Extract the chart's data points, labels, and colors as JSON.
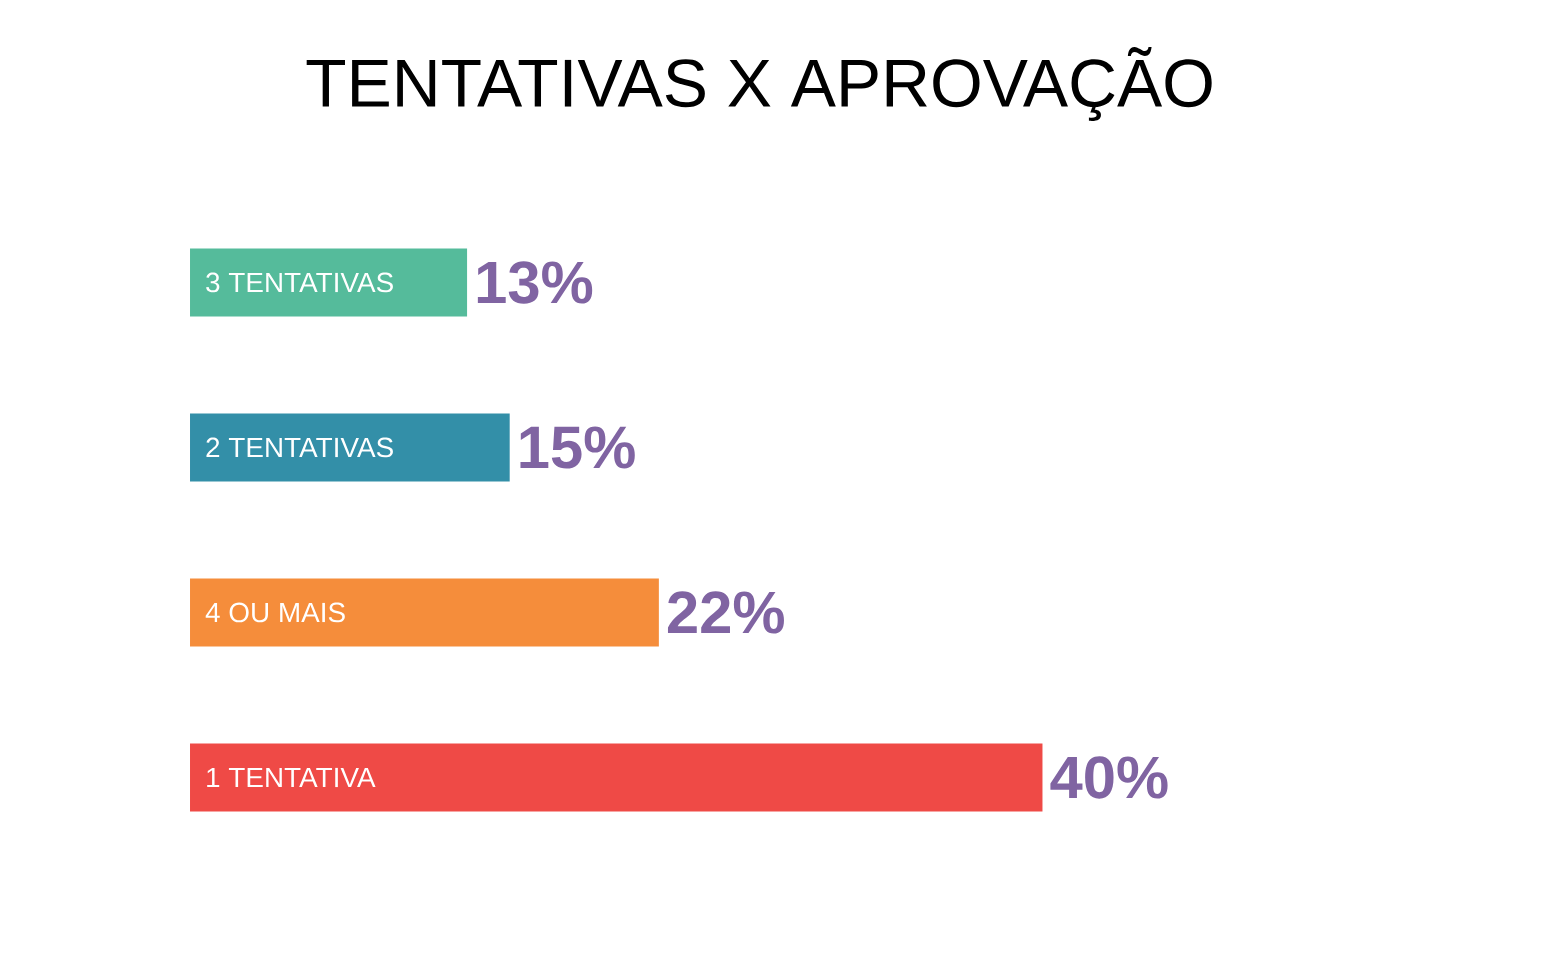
{
  "chart_data": {
    "type": "bar",
    "orientation": "horizontal",
    "title": "TENTATIVAS X APROVAÇÃO",
    "categories": [
      "3 TENTATIVAS",
      "2 TENTATIVAS",
      "4 OU MAIS",
      "1 TENTATIVA"
    ],
    "values": [
      13,
      15,
      22,
      40
    ],
    "value_labels": [
      "13%",
      "15%",
      "22%",
      "40%"
    ],
    "colors": [
      "#55bb9b",
      "#338fa8",
      "#f58d3b",
      "#ef4a46"
    ]
  }
}
